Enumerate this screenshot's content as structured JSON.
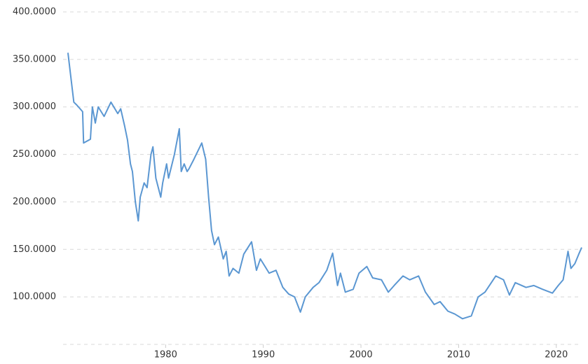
{
  "chart_data": {
    "type": "line",
    "x": [
      1970.0,
      1970.6,
      1970.9,
      1971.5,
      1971.6,
      1972.3,
      1972.5,
      1972.8,
      1973.1,
      1973.7,
      1974.4,
      1975.1,
      1975.4,
      1975.8,
      1976.1,
      1976.4,
      1976.6,
      1976.9,
      1977.2,
      1977.4,
      1977.8,
      1978.1,
      1978.5,
      1978.7,
      1979.0,
      1979.5,
      1979.7,
      1980.1,
      1980.3,
      1980.9,
      1981.4,
      1981.6,
      1981.9,
      1982.2,
      1982.4,
      1982.9,
      1983.7,
      1984.1,
      1984.4,
      1984.7,
      1985.0,
      1985.4,
      1985.9,
      1986.2,
      1986.5,
      1986.9,
      1987.5,
      1988.0,
      1988.8,
      1989.3,
      1989.7,
      1990.6,
      1991.3,
      1992.0,
      1992.6,
      1993.2,
      1993.8,
      1994.3,
      1995.1,
      1995.7,
      1996.5,
      1997.1,
      1997.6,
      1997.9,
      1998.4,
      1999.2,
      1999.8,
      2000.6,
      2001.2,
      2002.1,
      2002.8,
      2003.4,
      2004.3,
      2005.0,
      2005.9,
      2006.6,
      2007.5,
      2008.1,
      2008.9,
      2009.6,
      2010.4,
      2011.3,
      2012.0,
      2012.7,
      2013.8,
      2014.6,
      2015.2,
      2015.8,
      2016.9,
      2017.7,
      2018.6,
      2019.6,
      2020.2,
      2020.7,
      2021.2,
      2021.5,
      2021.9,
      2022.3,
      2022.6
    ],
    "series": [
      {
        "color": "#5b97d2",
        "values": [
          357,
          305,
          302,
          295,
          262,
          266,
          300,
          283,
          300,
          290,
          305,
          293,
          298,
          280,
          265,
          240,
          232,
          200,
          180,
          205,
          220,
          215,
          250,
          258,
          225,
          205,
          220,
          240,
          225,
          250,
          277,
          232,
          240,
          232,
          235,
          245,
          262,
          245,
          205,
          170,
          155,
          163,
          140,
          148,
          122,
          130,
          125,
          145,
          158,
          128,
          140,
          125,
          128,
          110,
          103,
          100,
          84,
          100,
          110,
          115,
          128,
          146,
          112,
          125,
          105,
          108,
          125,
          132,
          120,
          118,
          105,
          112,
          122,
          118,
          122,
          105,
          92,
          95,
          85,
          82,
          77,
          80,
          100,
          105,
          122,
          118,
          102,
          115,
          110,
          112,
          108,
          104,
          112,
          118,
          148,
          130,
          135,
          145,
          152
        ]
      }
    ],
    "xlim": [
      1969.5,
      2022.6
    ],
    "xticks": [
      1980,
      1990,
      2000,
      2010,
      2020
    ],
    "ylim": [
      50,
      400
    ],
    "yticks": [
      {
        "value": 100,
        "label": "100.0000"
      },
      {
        "value": 150,
        "label": "150.0000"
      },
      {
        "value": 200,
        "label": "200.0000"
      },
      {
        "value": 250,
        "label": "250.0000"
      },
      {
        "value": 300,
        "label": "300.0000"
      },
      {
        "value": 350,
        "label": "350.0000"
      },
      {
        "value": 400,
        "label": "400.0000"
      }
    ],
    "grid": true
  }
}
